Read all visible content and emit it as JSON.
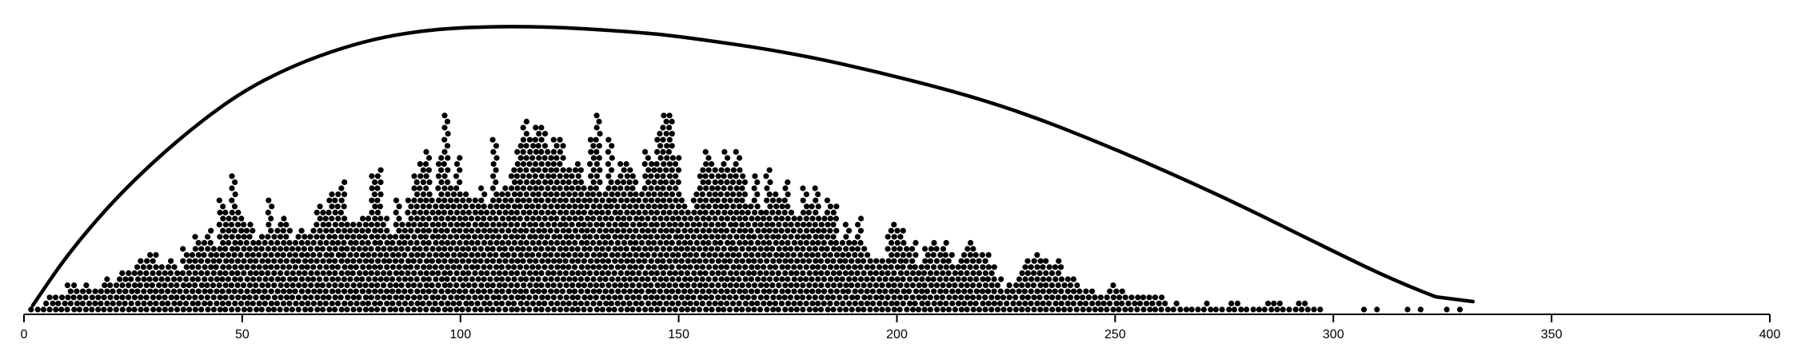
{
  "chart_data": {
    "type": "scatter",
    "subtype": "beeswarm",
    "title": "",
    "xlabel": "",
    "ylabel": "",
    "xlim": [
      0,
      400
    ],
    "x_ticks": [
      "0",
      "50",
      "100",
      "150",
      "200",
      "250",
      "300",
      "350",
      "400"
    ],
    "grid": false,
    "point_color": "#000000",
    "curve_color": "#000000",
    "density_profile": [
      [
        2,
        0
      ],
      [
        5,
        1
      ],
      [
        8,
        2
      ],
      [
        11,
        4
      ],
      [
        14,
        3
      ],
      [
        17,
        3
      ],
      [
        20,
        5
      ],
      [
        23,
        6
      ],
      [
        26,
        7
      ],
      [
        29,
        8
      ],
      [
        32,
        7
      ],
      [
        35,
        8
      ],
      [
        38,
        10
      ],
      [
        41,
        11
      ],
      [
        44,
        11
      ],
      [
        46,
        20
      ],
      [
        48,
        19
      ],
      [
        51,
        12
      ],
      [
        54,
        11
      ],
      [
        56,
        17
      ],
      [
        58,
        15
      ],
      [
        60,
        14
      ],
      [
        63,
        15
      ],
      [
        66,
        16
      ],
      [
        69,
        21
      ],
      [
        72,
        17
      ],
      [
        75,
        17
      ],
      [
        78,
        18
      ],
      [
        80,
        20
      ],
      [
        82,
        19
      ],
      [
        85,
        15
      ],
      [
        88,
        14
      ],
      [
        90,
        20
      ],
      [
        93,
        22
      ],
      [
        96,
        26
      ],
      [
        99,
        25
      ],
      [
        102,
        20
      ],
      [
        105,
        21
      ],
      [
        108,
        23
      ],
      [
        111,
        26
      ],
      [
        113,
        28
      ],
      [
        115,
        27
      ],
      [
        118,
        24
      ],
      [
        121,
        24
      ],
      [
        124,
        26
      ],
      [
        127,
        25
      ],
      [
        129,
        22
      ],
      [
        131,
        31
      ],
      [
        133,
        22
      ],
      [
        136,
        23
      ],
      [
        139,
        25
      ],
      [
        142,
        21
      ],
      [
        145,
        24
      ],
      [
        147,
        29
      ],
      [
        149,
        25
      ],
      [
        152,
        17
      ],
      [
        155,
        21
      ],
      [
        158,
        20
      ],
      [
        161,
        26
      ],
      [
        164,
        22
      ],
      [
        167,
        20
      ],
      [
        170,
        21
      ],
      [
        173,
        22
      ],
      [
        176,
        16
      ],
      [
        179,
        16
      ],
      [
        182,
        18
      ],
      [
        185,
        15
      ],
      [
        188,
        14
      ],
      [
        191,
        14
      ],
      [
        194,
        9
      ],
      [
        197,
        11
      ],
      [
        200,
        13
      ],
      [
        203,
        12
      ],
      [
        206,
        8
      ],
      [
        209,
        9
      ],
      [
        212,
        10
      ],
      [
        215,
        8
      ],
      [
        218,
        10
      ],
      [
        221,
        10
      ],
      [
        224,
        4
      ],
      [
        227,
        5
      ],
      [
        230,
        7
      ],
      [
        233,
        7
      ],
      [
        236,
        6
      ],
      [
        238,
        7
      ],
      [
        241,
        4
      ],
      [
        244,
        3
      ],
      [
        247,
        2
      ],
      [
        250,
        4
      ],
      [
        253,
        2
      ],
      [
        256,
        2
      ],
      [
        259,
        2
      ],
      [
        262,
        1
      ],
      [
        266,
        1
      ],
      [
        270,
        1
      ],
      [
        274,
        1
      ],
      [
        278,
        1
      ],
      [
        282,
        1
      ],
      [
        286,
        1
      ],
      [
        290,
        1
      ],
      [
        294,
        1
      ],
      [
        297,
        1
      ],
      [
        308,
        0
      ],
      [
        318,
        0
      ],
      [
        328,
        0
      ]
    ],
    "curve_points": [
      [
        2,
        0.02
      ],
      [
        10,
        0.2
      ],
      [
        20,
        0.38
      ],
      [
        30,
        0.53
      ],
      [
        40,
        0.66
      ],
      [
        50,
        0.77
      ],
      [
        60,
        0.85
      ],
      [
        70,
        0.91
      ],
      [
        80,
        0.955
      ],
      [
        90,
        0.982
      ],
      [
        100,
        0.996
      ],
      [
        113,
        1.0
      ],
      [
        125,
        0.995
      ],
      [
        140,
        0.98
      ],
      [
        150,
        0.965
      ],
      [
        175,
        0.91
      ],
      [
        200,
        0.825
      ],
      [
        225,
        0.72
      ],
      [
        250,
        0.57
      ],
      [
        275,
        0.4
      ],
      [
        300,
        0.21
      ],
      [
        315,
        0.1
      ],
      [
        332,
        0.0
      ]
    ]
  }
}
